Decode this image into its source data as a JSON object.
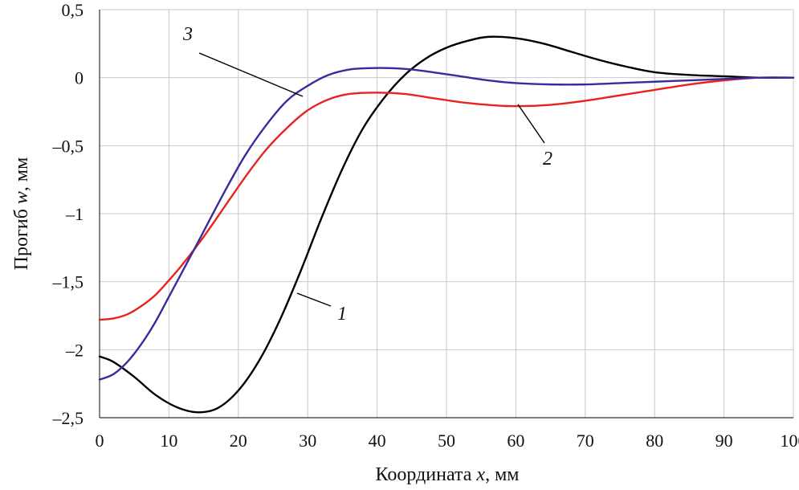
{
  "chart_data": {
    "type": "line",
    "xlabel": {
      "prefix": "Координата ",
      "var": "x",
      "suffix": ", мм"
    },
    "ylabel": {
      "prefix": "Прогиб ",
      "var": "w",
      "suffix": ", мм"
    },
    "xlim": [
      0,
      100
    ],
    "ylim": [
      -2.5,
      0.5
    ],
    "xticks": [
      0,
      10,
      20,
      30,
      40,
      50,
      60,
      70,
      80,
      90,
      100
    ],
    "xtick_labels": [
      "0",
      "10",
      "20",
      "30",
      "40",
      "50",
      "60",
      "70",
      "80",
      "90",
      "100"
    ],
    "yticks": [
      0.5,
      0,
      -0.5,
      -1,
      -1.5,
      -2,
      -2.5
    ],
    "ytick_labels": [
      "0,5",
      "0",
      "–0,5",
      "–1",
      "–1,5",
      "–2",
      "–2,5"
    ],
    "grid": true,
    "series": [
      {
        "name": "1",
        "color": "#000000",
        "x": [
          0,
          2,
          5,
          8,
          11,
          14,
          17,
          20,
          23,
          26,
          29,
          32,
          35,
          38,
          41,
          44,
          47,
          50,
          53,
          56,
          60,
          64,
          68,
          72,
          76,
          80,
          85,
          90,
          95,
          100
        ],
        "y": [
          -2.05,
          -2.09,
          -2.2,
          -2.33,
          -2.42,
          -2.46,
          -2.43,
          -2.3,
          -2.08,
          -1.78,
          -1.42,
          -1.03,
          -0.67,
          -0.37,
          -0.15,
          0.02,
          0.14,
          0.22,
          0.27,
          0.3,
          0.29,
          0.25,
          0.19,
          0.13,
          0.08,
          0.04,
          0.02,
          0.01,
          0.0,
          0.0
        ]
      },
      {
        "name": "2",
        "color": "#e8231f",
        "x": [
          0,
          2,
          4,
          6,
          8,
          10,
          12,
          15,
          18,
          21,
          24,
          27,
          30,
          33,
          36,
          40,
          44,
          48,
          52,
          56,
          60,
          65,
          70,
          75,
          80,
          85,
          90,
          95,
          100
        ],
        "y": [
          -1.78,
          -1.77,
          -1.74,
          -1.68,
          -1.6,
          -1.49,
          -1.37,
          -1.17,
          -0.95,
          -0.73,
          -0.53,
          -0.37,
          -0.24,
          -0.16,
          -0.12,
          -0.11,
          -0.12,
          -0.15,
          -0.18,
          -0.2,
          -0.21,
          -0.2,
          -0.17,
          -0.13,
          -0.09,
          -0.05,
          -0.02,
          0.0,
          0.0
        ]
      },
      {
        "name": "3",
        "color": "#3b2a9c",
        "x": [
          0,
          2,
          4,
          6,
          8,
          10,
          12,
          15,
          18,
          21,
          24,
          27,
          30,
          33,
          36,
          39,
          42,
          45,
          48,
          52,
          56,
          60,
          65,
          70,
          75,
          80,
          85,
          90,
          95,
          100
        ],
        "y": [
          -2.22,
          -2.18,
          -2.09,
          -1.96,
          -1.8,
          -1.61,
          -1.42,
          -1.13,
          -0.84,
          -0.57,
          -0.35,
          -0.17,
          -0.06,
          0.02,
          0.06,
          0.07,
          0.07,
          0.06,
          0.04,
          0.01,
          -0.02,
          -0.04,
          -0.05,
          -0.05,
          -0.04,
          -0.03,
          -0.02,
          -0.01,
          0.0,
          0.0
        ]
      }
    ],
    "annotations": [
      {
        "text": "1",
        "series": "1"
      },
      {
        "text": "2",
        "series": "2"
      },
      {
        "text": "3",
        "series": "3"
      }
    ]
  }
}
